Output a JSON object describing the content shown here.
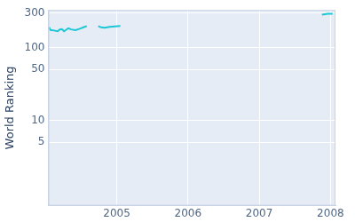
{
  "chart_data": {
    "type": "line",
    "y_label": "World Ranking",
    "x": [
      2004.05,
      2004.07,
      2004.12,
      2004.17,
      2004.2,
      2004.23,
      2004.26,
      2004.29,
      2004.32,
      2004.36,
      2004.42,
      2004.48,
      2004.54,
      2004.58,
      2004.66,
      2004.74,
      2004.78,
      2004.83,
      2004.9,
      2004.97,
      2005.05,
      2005.5,
      2007.88,
      2007.96,
      2008.03
    ],
    "values": [
      190,
      175,
      172,
      168,
      178,
      180,
      168,
      176,
      185,
      178,
      174,
      182,
      192,
      198,
      null,
      198,
      190,
      188,
      193,
      196,
      198,
      null,
      285,
      292,
      292
    ],
    "color": "#1bc7d4",
    "xlim": [
      2004.04,
      2008.07
    ],
    "xticks": [
      2005,
      2006,
      2007,
      2008
    ],
    "ylim": [
      0.67,
      330
    ],
    "yticks": [
      5,
      10,
      50,
      100,
      300
    ],
    "log": "y",
    "grid": true
  }
}
